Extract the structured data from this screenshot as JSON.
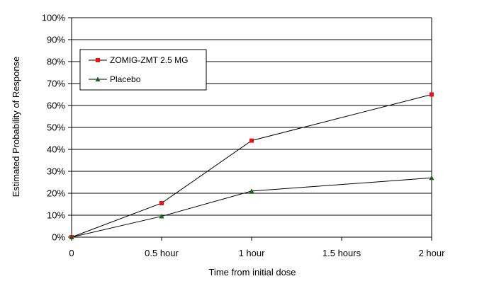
{
  "chart_data": {
    "type": "line",
    "x_categories": [
      "0",
      "0.5 hour",
      "1 hour",
      "1.5 hours",
      "2 hour"
    ],
    "x_values": [
      0,
      0.5,
      1,
      1.5,
      2
    ],
    "xlabel": "Time from initial dose",
    "ylabel": "Estimated Probability of Response",
    "ylim": [
      0,
      100
    ],
    "y_ticks": [
      "0%",
      "10%",
      "20%",
      "30%",
      "40%",
      "50%",
      "60%",
      "70%",
      "80%",
      "90%",
      "100%"
    ],
    "grid": "horizontal",
    "legend_position": "top-left",
    "series": [
      {
        "name": "ZOMIG-ZMT 2.5 MG",
        "color": "#ee1111",
        "marker": "square",
        "points": [
          {
            "x": 0,
            "y": 0
          },
          {
            "x": 0.5,
            "y": 15.5
          },
          {
            "x": 1,
            "y": 44
          },
          {
            "x": 2,
            "y": 65
          }
        ]
      },
      {
        "name": "Placebo",
        "color": "#116611",
        "marker": "triangle",
        "points": [
          {
            "x": 0,
            "y": 0
          },
          {
            "x": 0.5,
            "y": 9.5
          },
          {
            "x": 1,
            "y": 21
          },
          {
            "x": 2,
            "y": 27
          }
        ]
      }
    ]
  }
}
